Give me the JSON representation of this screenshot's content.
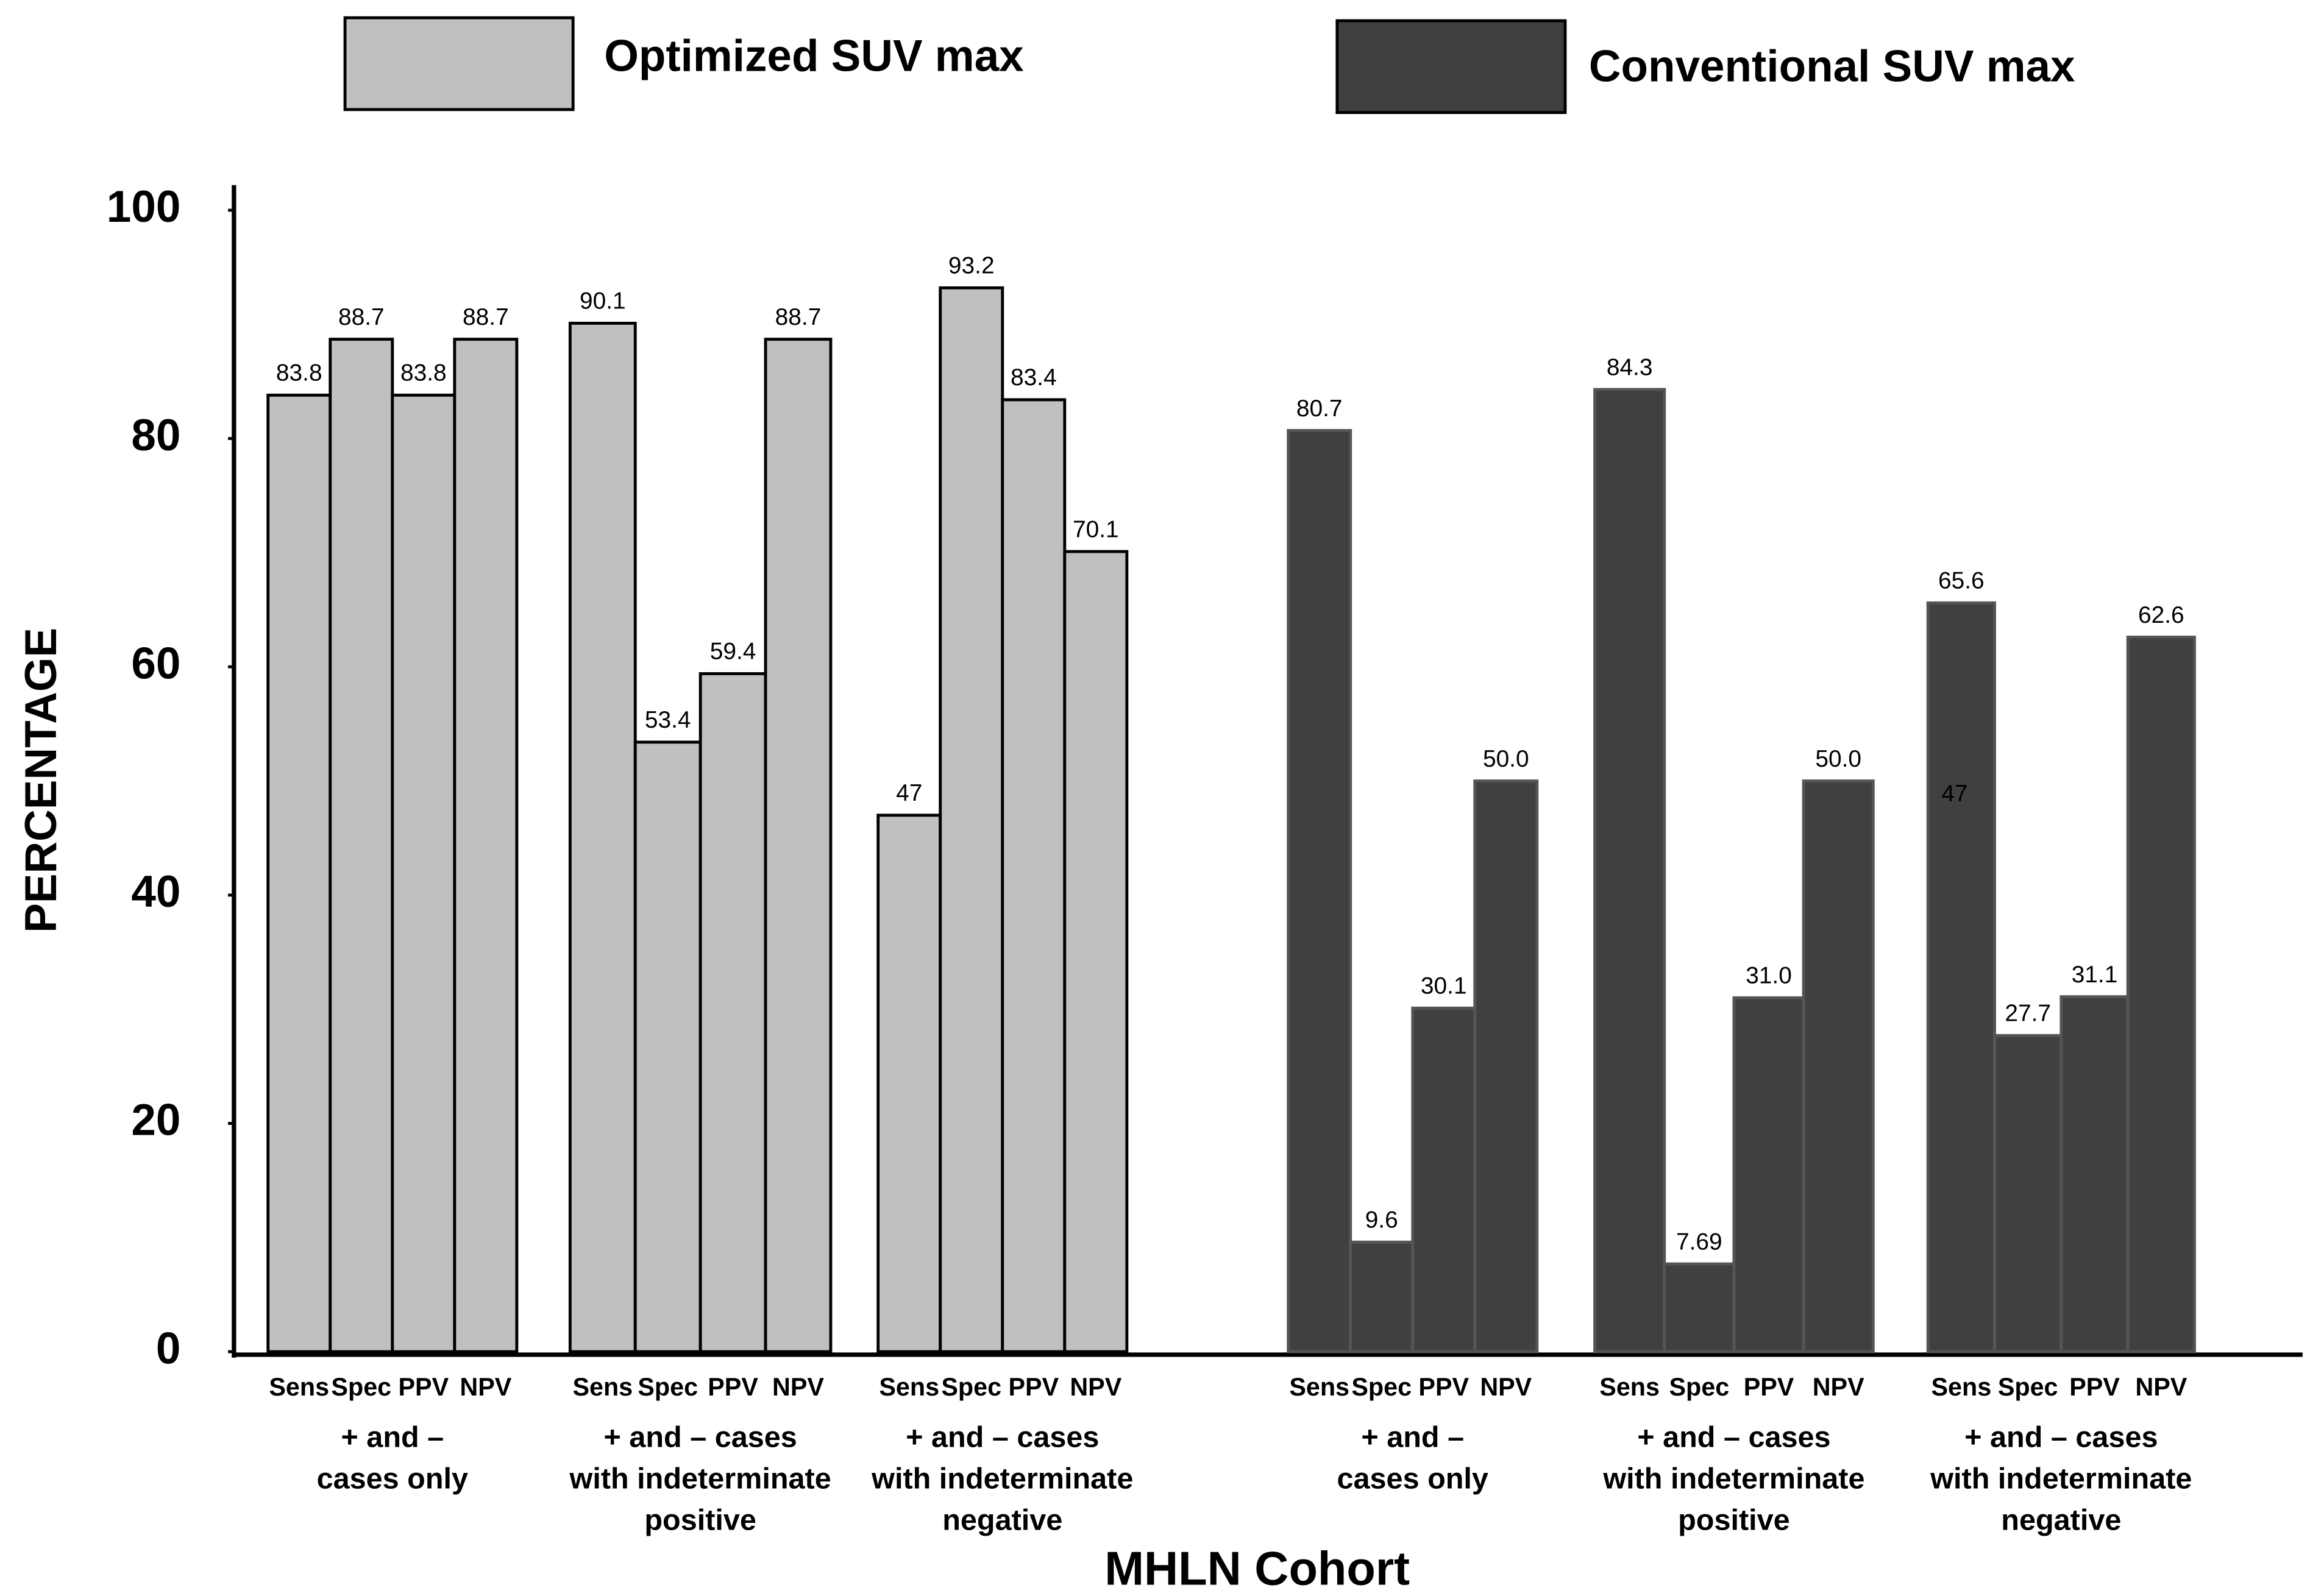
{
  "chart_data": {
    "type": "bar",
    "xlabel": "MHLN Cohort",
    "ylabel": "PERCENTAGE",
    "categories": [
      "Sens",
      "Spec",
      "PPV",
      "NPV"
    ],
    "ylim": [
      0,
      100
    ],
    "yticks": [
      0,
      20,
      40,
      60,
      80,
      100
    ],
    "annotations": [
      "47"
    ],
    "series": [
      {
        "name": "Optimized SUV max",
        "color": "#c0c0c0",
        "groups": [
          [
            "+ and –",
            "cases only"
          ],
          [
            "+ and – cases",
            "with indeterminate",
            "positive"
          ],
          [
            "+ and – cases",
            "with indeterminate",
            "negative"
          ]
        ],
        "values": [
          [
            83.8,
            88.7,
            83.8,
            88.7
          ],
          [
            90.1,
            53.4,
            59.4,
            88.7
          ],
          [
            47,
            93.2,
            83.4,
            70.1
          ]
        ],
        "value_labels": [
          [
            "83.8",
            "88.7",
            "83.8",
            "88.7"
          ],
          [
            "90.1",
            "53.4",
            "59.4",
            "88.7"
          ],
          [
            "47",
            "93.2",
            "83.4",
            "70.1"
          ]
        ]
      },
      {
        "name": "Conventional SUV max",
        "color": "#404040",
        "groups": [
          [
            "+ and –",
            "cases only"
          ],
          [
            "+ and – cases",
            "with indeterminate",
            "positive"
          ],
          [
            "+ and – cases",
            "with indeterminate",
            "negative"
          ]
        ],
        "values": [
          [
            80.7,
            9.6,
            30.1,
            50.0
          ],
          [
            84.3,
            7.69,
            31.0,
            50.0
          ],
          [
            65.6,
            27.7,
            31.1,
            62.6
          ]
        ],
        "value_labels": [
          [
            "80.7",
            "9.6",
            "30.1",
            "50.0"
          ],
          [
            "84.3",
            "7.69",
            "31.0",
            "50.0"
          ],
          [
            "65.6",
            "27.7",
            "31.1",
            "62.6"
          ]
        ]
      }
    ]
  }
}
